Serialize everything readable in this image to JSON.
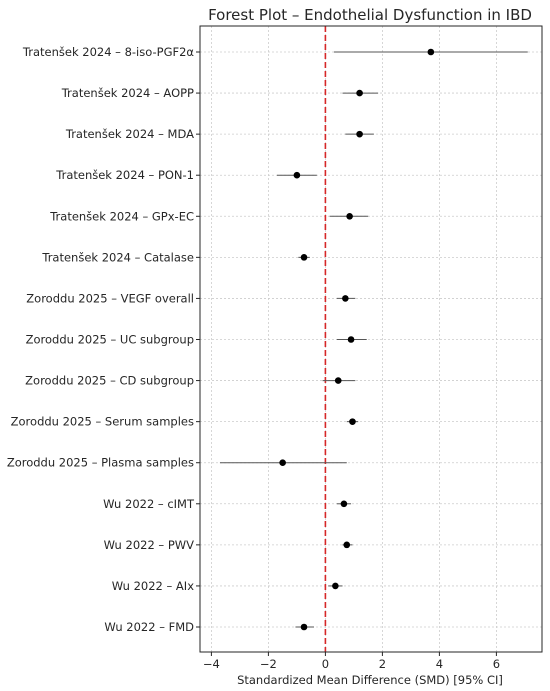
{
  "chart_data": {
    "type": "scatter",
    "title": "Forest Plot – Endothelial Dysfunction in IBD",
    "xlabel": "Standardized Mean Difference (SMD) [95% CI]",
    "ylabel": "",
    "xlim": [
      -4.4,
      7.6
    ],
    "xticks": [
      -4,
      -2,
      0,
      2,
      4,
      6
    ],
    "grid": true,
    "reference_line": {
      "x": 0,
      "color": "#d62728",
      "style": "dashed"
    },
    "colors": {
      "point": "#000000",
      "ci": "#555555",
      "grid": "#cccccc",
      "reference": "#d62728"
    },
    "studies": [
      {
        "label": "Tratenšek 2024 – 8-iso-PGF2α",
        "smd": 3.7,
        "lo": 0.3,
        "hi": 7.1
      },
      {
        "label": "Tratenšek 2024 – AOPP",
        "smd": 1.2,
        "lo": 0.6,
        "hi": 1.85
      },
      {
        "label": "Tratenšek 2024 – MDA",
        "smd": 1.2,
        "lo": 0.7,
        "hi": 1.7
      },
      {
        "label": "Tratenšek 2024 – PON-1",
        "smd": -1.0,
        "lo": -1.7,
        "hi": -0.3
      },
      {
        "label": "Tratenšek 2024 – GPx-EC",
        "smd": 0.85,
        "lo": 0.15,
        "hi": 1.5
      },
      {
        "label": "Tratenšek 2024 – Catalase",
        "smd": -0.75,
        "lo": -0.95,
        "hi": -0.55
      },
      {
        "label": "Zoroddu 2025 – VEGF overall",
        "smd": 0.7,
        "lo": 0.4,
        "hi": 1.05
      },
      {
        "label": "Zoroddu 2025 – UC subgroup",
        "smd": 0.9,
        "lo": 0.4,
        "hi": 1.45
      },
      {
        "label": "Zoroddu 2025 – CD subgroup",
        "smd": 0.45,
        "lo": -0.1,
        "hi": 1.05
      },
      {
        "label": "Zoroddu 2025 – Serum samples",
        "smd": 0.95,
        "lo": 0.75,
        "hi": 1.15
      },
      {
        "label": "Zoroddu 2025 – Plasma samples",
        "smd": -1.5,
        "lo": -3.7,
        "hi": 0.75
      },
      {
        "label": "Wu 2022 – cIMT",
        "smd": 0.65,
        "lo": 0.4,
        "hi": 0.9
      },
      {
        "label": "Wu 2022 – PWV",
        "smd": 0.75,
        "lo": 0.6,
        "hi": 0.95
      },
      {
        "label": "Wu 2022 – AIx",
        "smd": 0.35,
        "lo": 0.1,
        "hi": 0.6
      },
      {
        "label": "Wu 2022 – FMD",
        "smd": -0.75,
        "lo": -1.05,
        "hi": -0.4
      }
    ]
  }
}
